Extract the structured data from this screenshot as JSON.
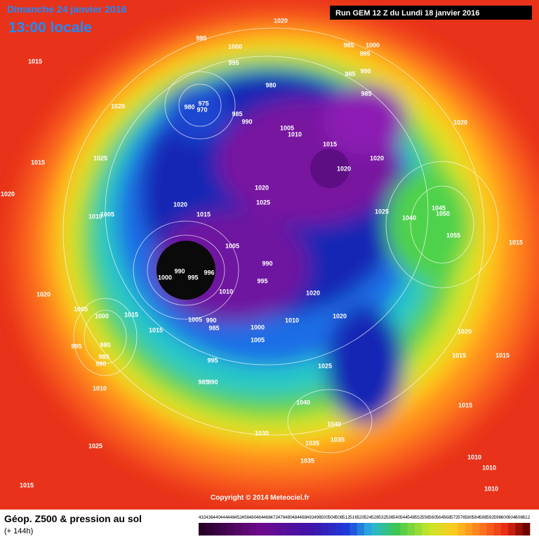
{
  "header": {
    "date": "Dimanche 24 janvier 2016",
    "time": "13:00 locale",
    "run": "Run GEM 12 Z du Lundi 18 janvier 2016"
  },
  "pressure_labels": [
    "1020",
    "995",
    "1000",
    "985",
    "1000",
    "995",
    "1015",
    "995",
    "990",
    "985",
    "980",
    "985",
    "975",
    "980",
    "970",
    "1020",
    "985",
    "990",
    "1005",
    "1010",
    "1020",
    "1015",
    "1025",
    "1015",
    "1020",
    "1020",
    "1020",
    "1025",
    "1020",
    "1020",
    "1010",
    "1005",
    "1015",
    "1045",
    "1050",
    "1025",
    "1040",
    "1055",
    "1015",
    "1005",
    "990",
    "990",
    "996",
    "1000",
    "995",
    "995",
    "1010",
    "1020",
    "1020",
    "1005",
    "1000",
    "1015",
    "1020",
    "1010",
    "1005",
    "990",
    "985",
    "1000",
    "1015",
    "1020",
    "1005",
    "995",
    "980",
    "985",
    "990",
    "995",
    "1015",
    "1015",
    "1025",
    "985",
    "990",
    "1010",
    "1040",
    "1015",
    "1030",
    "1040",
    "1035",
    "1035",
    "1025",
    "1035",
    "1010",
    "1010",
    "1015",
    "1010"
  ],
  "copyright": "Copyright © 2014 Meteociel.fr",
  "legend": {
    "title": "Géop. Z500 & pression au sol",
    "lead": "(+ 144h)",
    "values": [
      432,
      436,
      440,
      444,
      448,
      452,
      456,
      460,
      464,
      468,
      472,
      476,
      480,
      484,
      488,
      492,
      496,
      500,
      504,
      508,
      512,
      516,
      520,
      524,
      528,
      532,
      536,
      540,
      544,
      548,
      552,
      556,
      560,
      564,
      568,
      572,
      576,
      580,
      584,
      588,
      592,
      596,
      600,
      604,
      608,
      612
    ]
  }
}
